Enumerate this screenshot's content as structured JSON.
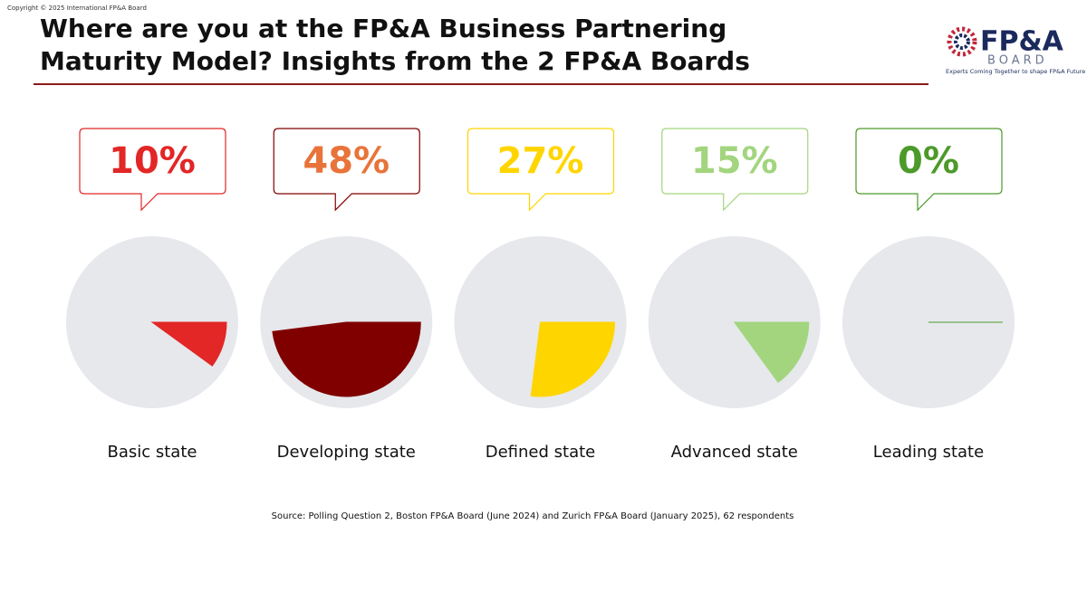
{
  "copyright": "Copyright © 2025 International FP&A Board",
  "logo": {
    "name": "FP&A",
    "sub": "BOARD",
    "tagline": "Experts Coming Together to shape FP&A Future"
  },
  "chart_data": {
    "type": "pie-row",
    "title": "Where are you at the FP&A Business Partnering Maturity Model? Insights from the 2 FP&A Boards",
    "categories": [
      "Basic state",
      "Developing state",
      "Defined state",
      "Advanced state",
      "Leading state"
    ],
    "values": [
      10,
      48,
      27,
      15,
      0
    ],
    "value_labels": [
      "10%",
      "48%",
      "27%",
      "15%",
      "0%"
    ],
    "colors": [
      "#e32626",
      "#800000",
      "#ffd500",
      "#a3d57f",
      "#4c9a2a"
    ],
    "label_colors": [
      "#e32626",
      "#e8743b",
      "#ffd500",
      "#a3d57f",
      "#4c9a2a"
    ],
    "background_color": "#e6e8ec",
    "source": "Source: Polling Question 2, Boston FP&A Board (June 2024) and Zurich FP&A Board (January 2025), 62 respondents"
  }
}
